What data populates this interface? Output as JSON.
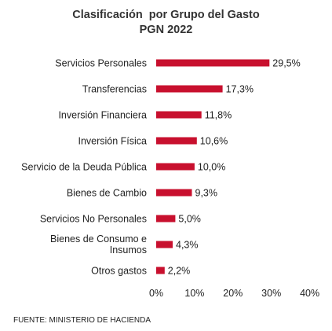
{
  "chart_data": {
    "type": "bar",
    "orientation": "horizontal",
    "title": "Clasificación  por Grupo del Gasto",
    "subtitle": "PGN 2022",
    "categories": [
      "Servicios Personales",
      "Transferencias",
      "Inversión Financiera",
      "Inversión Física",
      "Servicio de la Deuda Pública",
      "Bienes de Cambio",
      "Servicios No Personales",
      "Bienes de Consumo e Insumos",
      "Otros gastos"
    ],
    "category_lines": [
      [
        "Servicios Personales"
      ],
      [
        "Transferencias"
      ],
      [
        "Inversión Financiera"
      ],
      [
        "Inversión Física"
      ],
      [
        "Servicio de la Deuda Pública"
      ],
      [
        "Bienes de Cambio"
      ],
      [
        "Servicios No Personales"
      ],
      [
        "Bienes de Consumo e",
        "Insumos"
      ],
      [
        "Otros gastos"
      ]
    ],
    "values": [
      29.5,
      17.3,
      11.8,
      10.6,
      10.0,
      9.3,
      5.0,
      4.3,
      2.2
    ],
    "data_labels": [
      "29,5%",
      "17,3%",
      "11,8%",
      "10,6%",
      "10,0%",
      "9,3%",
      "5,0%",
      "4,3%",
      "2,2%"
    ],
    "x_ticks": [
      "0%",
      "10%",
      "20%",
      "30%",
      "40%"
    ],
    "xlim": [
      0,
      40
    ],
    "bar_color": "#c8102e",
    "grid": false,
    "legend": false
  },
  "source": "FUENTE: MINISTERIO DE  HACIENDA"
}
